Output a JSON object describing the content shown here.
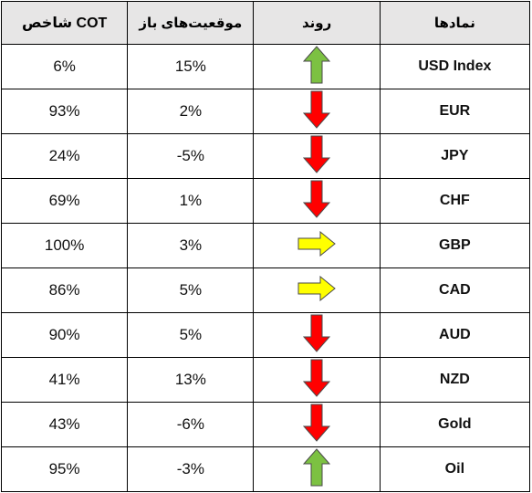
{
  "table": {
    "headers": {
      "cot_index": "شاخص COT",
      "open_positions": "موقعیت‌های باز",
      "trend": "روند",
      "symbols": "نمادها"
    },
    "rows": [
      {
        "symbol": "USD Index",
        "trend": "up",
        "open_positions": "15%",
        "cot_index": "6%"
      },
      {
        "symbol": "EUR",
        "trend": "down",
        "open_positions": "2%",
        "cot_index": "93%"
      },
      {
        "symbol": "JPY",
        "trend": "down",
        "open_positions": "-5%",
        "cot_index": "24%"
      },
      {
        "symbol": "CHF",
        "trend": "down",
        "open_positions": "1%",
        "cot_index": "69%"
      },
      {
        "symbol": "GBP",
        "trend": "right",
        "open_positions": "3%",
        "cot_index": "100%"
      },
      {
        "symbol": "CAD",
        "trend": "right",
        "open_positions": "5%",
        "cot_index": "86%"
      },
      {
        "symbol": "AUD",
        "trend": "down",
        "open_positions": "5%",
        "cot_index": "90%"
      },
      {
        "symbol": "NZD",
        "trend": "down",
        "open_positions": "13%",
        "cot_index": "41%"
      },
      {
        "symbol": "Gold",
        "trend": "down",
        "open_positions": "-6%",
        "cot_index": "43%"
      },
      {
        "symbol": "Oil",
        "trend": "up",
        "open_positions": "-3%",
        "cot_index": "95%"
      }
    ]
  },
  "icons": {
    "up": "green-up-arrow-icon",
    "down": "red-down-arrow-icon",
    "right": "yellow-right-arrow-icon"
  },
  "colors": {
    "header_bg": "#e7e6e6",
    "border": "#000000",
    "up_arrow": "#7cc142",
    "down_arrow": "#ff0000",
    "neutral_arrow": "#ffff00"
  }
}
